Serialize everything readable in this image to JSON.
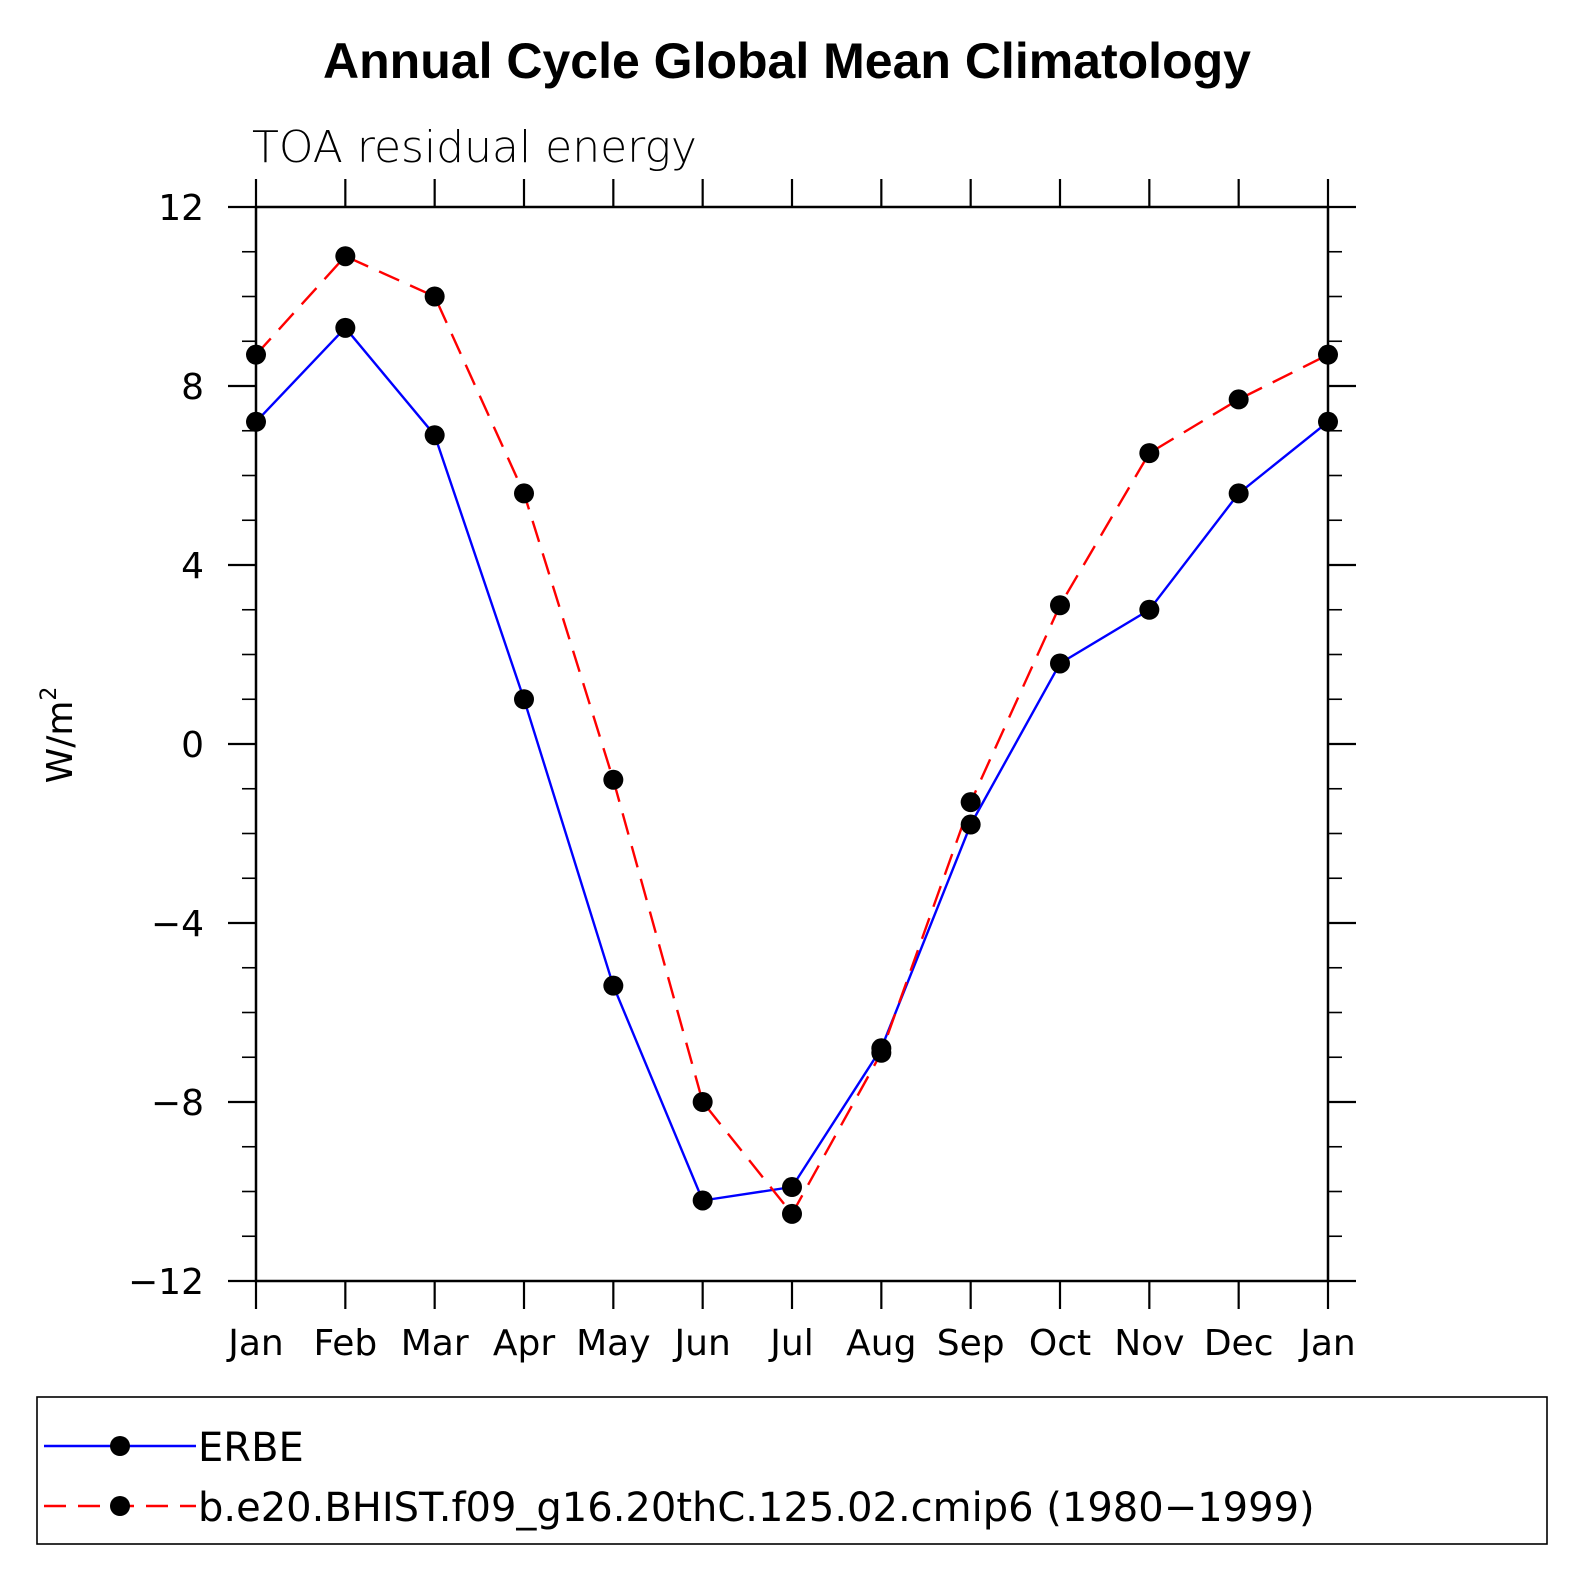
{
  "chart_data": {
    "type": "line",
    "title": "Annual Cycle Global Mean Climatology",
    "subtitle": "TOA residual energy",
    "ylabel": "W/m",
    "ylabel_superscript": "2",
    "xlabel": "",
    "categories": [
      "Jan",
      "Feb",
      "Mar",
      "Apr",
      "May",
      "Jun",
      "Jul",
      "Aug",
      "Sep",
      "Oct",
      "Nov",
      "Dec",
      "Jan"
    ],
    "ylim": [
      -12,
      12
    ],
    "yticks": [
      -12,
      -8,
      -4,
      0,
      4,
      8,
      12
    ],
    "ytick_labels": [
      "−12",
      "−8",
      "−4",
      "0",
      "4",
      "8",
      "12"
    ],
    "y_minor_step": 1,
    "grid": false,
    "legend_position": "bottom",
    "series": [
      {
        "name": "ERBE",
        "color": "#0000ff",
        "line_style": "solid",
        "marker": "filled-circle",
        "values": [
          7.2,
          9.3,
          6.9,
          1.0,
          -5.4,
          -10.2,
          -9.9,
          -6.8,
          -1.8,
          1.8,
          3.0,
          5.6,
          7.2
        ]
      },
      {
        "name": "b.e20.BHIST.f09_g16.20thC.125.02.cmip6 (1980−1999)",
        "color": "#ff0000",
        "line_style": "dashed",
        "marker": "filled-circle",
        "values": [
          8.7,
          10.9,
          10.0,
          5.6,
          -0.8,
          -8.0,
          -10.5,
          -6.9,
          -1.3,
          3.1,
          6.5,
          7.7,
          8.7
        ]
      }
    ]
  }
}
